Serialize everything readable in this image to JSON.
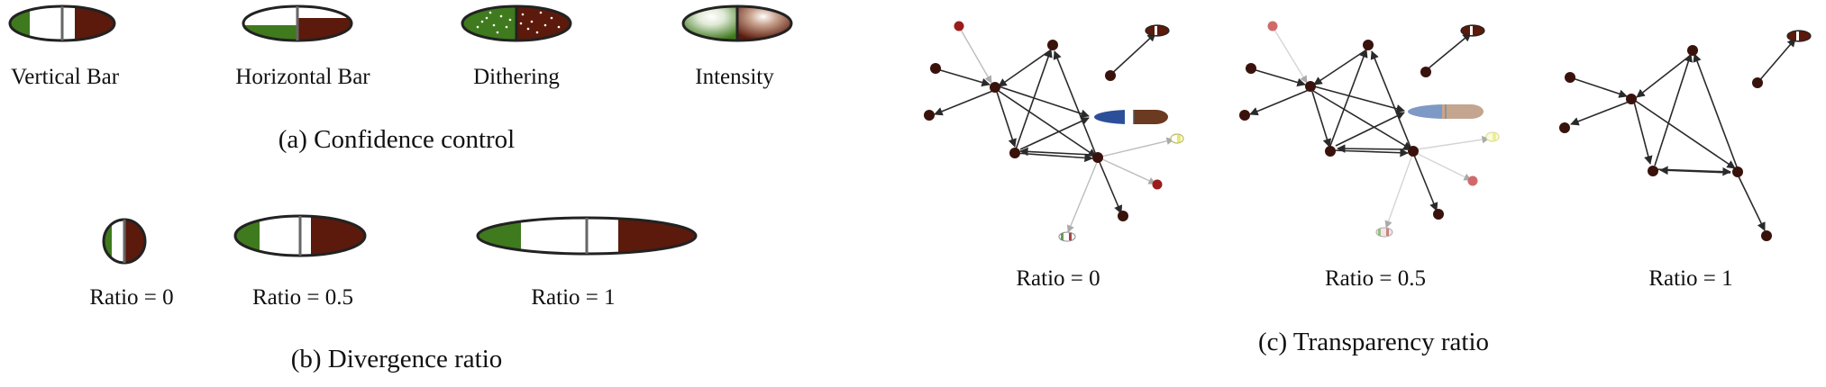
{
  "panel_a": {
    "caption": "(a)  Confidence control",
    "glyphs": [
      {
        "label": "Vertical Bar",
        "style": "vertical-bar"
      },
      {
        "label": "Horizontal Bar",
        "style": "horizontal-bar"
      },
      {
        "label": "Dithering",
        "style": "dithering"
      },
      {
        "label": "Intensity",
        "style": "intensity"
      }
    ]
  },
  "panel_b": {
    "caption": "(b)  Divergence ratio",
    "glyphs": [
      {
        "label": "Ratio = 0",
        "ratio": 0
      },
      {
        "label": "Ratio = 0.5",
        "ratio": 0.5
      },
      {
        "label": "Ratio = 1",
        "ratio": 1
      }
    ]
  },
  "panel_c": {
    "caption": "(c)  Transparency ratio",
    "graphs": [
      {
        "label": "Ratio = 0",
        "ratio": 0
      },
      {
        "label": "Ratio = 0.5",
        "ratio": 0.5
      },
      {
        "label": "Ratio = 1",
        "ratio": 1
      }
    ]
  },
  "colors": {
    "green": "#3f7a1e",
    "brown": "#5b1a0c",
    "blue": "#2d4f9a",
    "node": "#3a120c",
    "red_node": "#9b1c1c",
    "edge": "#2a2a2a"
  }
}
